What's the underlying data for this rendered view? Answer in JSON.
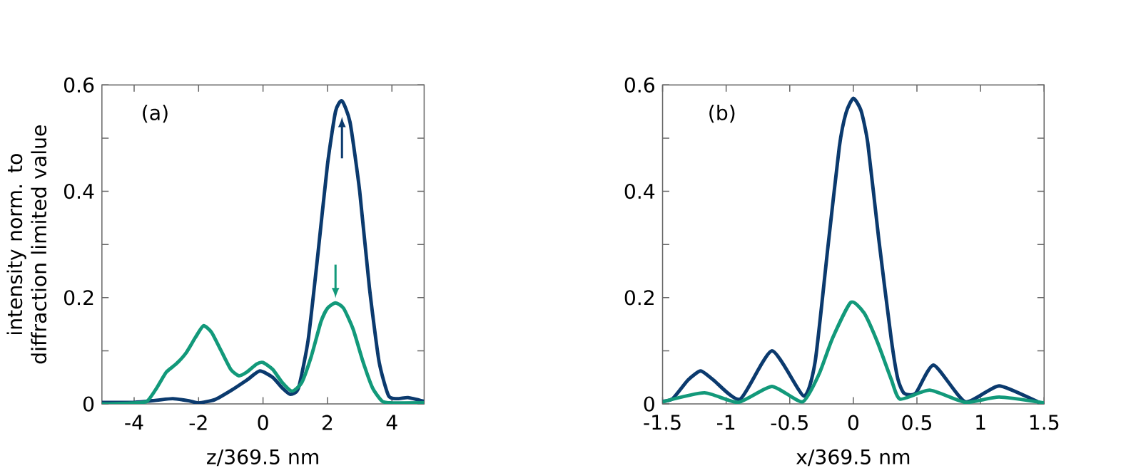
{
  "chart_data": [
    {
      "type": "line",
      "xlabel": "z/369.5 nm",
      "ylabel": "intensity norm. to diffraction limited value",
      "annotations": [
        "(a)"
      ],
      "xlim": [
        -5,
        5
      ],
      "xticks": [
        -4,
        -2,
        0,
        2,
        4
      ],
      "ylim": [
        0,
        0.6
      ],
      "yticks": [
        0,
        {
          "value": 0.1,
          "label": null
        },
        0.2,
        {
          "value": 0.3,
          "label": null
        },
        0.4,
        {
          "value": 0.5,
          "label": null
        },
        0.6
      ],
      "series": [
        {
          "color": "#0b3a6e",
          "x": [
            -5,
            -4,
            -3.3,
            -2.8,
            -2.3,
            -2,
            -1.5,
            -1,
            -0.5,
            -0.1,
            0.3,
            0.6,
            0.85,
            1.1,
            1.4,
            1.7,
            2.0,
            2.25,
            2.45,
            2.7,
            3.0,
            3.3,
            3.6,
            3.9,
            4.2,
            4.5,
            5
          ],
          "values": [
            0.003,
            0.003,
            0.007,
            0.01,
            0.006,
            0.002,
            0.008,
            0.025,
            0.045,
            0.062,
            0.05,
            0.03,
            0.018,
            0.03,
            0.12,
            0.28,
            0.45,
            0.55,
            0.57,
            0.53,
            0.4,
            0.22,
            0.08,
            0.015,
            0.01,
            0.012,
            0.005
          ]
        },
        {
          "color": "#12997a",
          "x": [
            -5,
            -4,
            -3.6,
            -3.3,
            -3,
            -2.7,
            -2.4,
            -2.1,
            -1.85,
            -1.6,
            -1.3,
            -1.0,
            -0.75,
            -0.5,
            -0.2,
            0,
            0.3,
            0.6,
            0.9,
            1.2,
            1.5,
            1.8,
            2.0,
            2.25,
            2.5,
            2.8,
            3.1,
            3.4,
            3.7,
            4,
            5
          ],
          "values": [
            0,
            0.002,
            0.005,
            0.03,
            0.06,
            0.075,
            0.095,
            0.125,
            0.147,
            0.135,
            0.1,
            0.065,
            0.053,
            0.06,
            0.075,
            0.078,
            0.065,
            0.04,
            0.024,
            0.04,
            0.09,
            0.155,
            0.18,
            0.19,
            0.18,
            0.14,
            0.08,
            0.03,
            0.005,
            0.002,
            0.002
          ]
        }
      ]
    },
    {
      "type": "line",
      "xlabel": "x/369.5 nm",
      "annotations": [
        "(b)"
      ],
      "xlim": [
        -1.5,
        1.5
      ],
      "xticks": [
        -1.5,
        -1,
        -0.5,
        0,
        0.5,
        1,
        1.5
      ],
      "ylim": [
        0,
        0.6
      ],
      "yticks": [
        0,
        {
          "value": 0.1,
          "label": null
        },
        0.2,
        {
          "value": 0.3,
          "label": null
        },
        0.4,
        {
          "value": 0.5,
          "label": null
        },
        0.6
      ],
      "series": [
        {
          "color": "#0b3a6e",
          "x": [
            -1.5,
            -1.42,
            -1.3,
            -1.2,
            -1.1,
            -0.89,
            -0.64,
            -0.39,
            -0.3,
            -0.2,
            -0.11,
            -0.057,
            0,
            0.06,
            0.114,
            0.2,
            0.297,
            0.35,
            0.4,
            0.49,
            0.633,
            0.88,
            1.146,
            1.46,
            1.5
          ],
          "values": [
            0.005,
            0.01,
            0.045,
            0.062,
            0.045,
            0.009,
            0.1,
            0.015,
            0.08,
            0.295,
            0.484,
            0.548,
            0.575,
            0.552,
            0.49,
            0.31,
            0.124,
            0.047,
            0.02,
            0.02,
            0.073,
            0.004,
            0.034,
            0.003,
            0.003
          ]
        },
        {
          "color": "#12997a",
          "x": [
            -1.5,
            -1.17,
            -0.906,
            -0.64,
            -0.4,
            -0.27,
            -0.163,
            -0.02,
            0.085,
            0.19,
            0.297,
            0.368,
            0.6,
            0.88,
            1.146,
            1.5
          ],
          "values": [
            0.004,
            0.021,
            0.003,
            0.033,
            0.004,
            0.056,
            0.124,
            0.191,
            0.171,
            0.116,
            0.047,
            0.009,
            0.026,
            0.003,
            0.013,
            0.002
          ]
        }
      ]
    }
  ]
}
